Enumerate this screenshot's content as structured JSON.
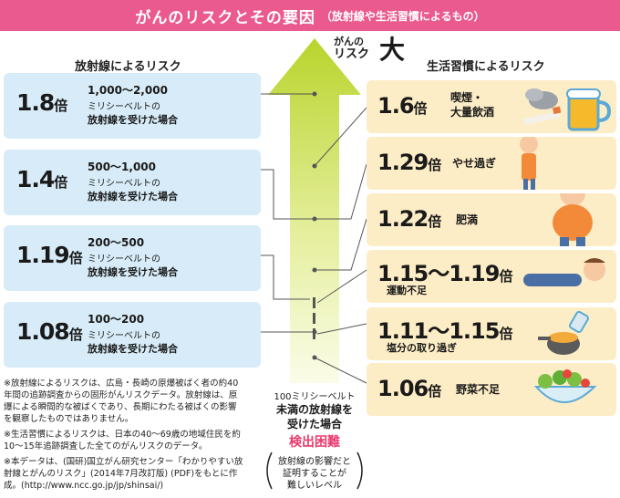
{
  "title": {
    "main": "がんのリスクとその要因",
    "sub": "（放射線や生活習慣によるもの）"
  },
  "risk_label": {
    "line1": "がんの",
    "line2": "リスク",
    "big": "大"
  },
  "left_header": "放射線によるリスク",
  "right_header": "生活習慣によるリスク",
  "radiation": [
    {
      "value": "1.8",
      "unit": "倍",
      "dose": "1,000〜2,000",
      "unit_label": "ミリシーベルトの",
      "desc": "放射線を受けた場合",
      "icon": "radiation-icon"
    },
    {
      "value": "1.4",
      "unit": "倍",
      "dose": "500〜1,000",
      "unit_label": "ミリシーベルトの",
      "desc": "放射線を受けた場合",
      "icon": "radiation-icon"
    },
    {
      "value": "1.19",
      "unit": "倍",
      "dose": "200〜500",
      "unit_label": "ミリシーベルトの",
      "desc": "放射線を受けた場合",
      "icon": "radiation-icon"
    },
    {
      "value": "1.08",
      "unit": "倍",
      "dose": "100〜200",
      "unit_label": "ミリシーベルトの",
      "desc": "放射線を受けた場合",
      "icon": "radiation-icon"
    }
  ],
  "lifestyle": [
    {
      "value": "1.6",
      "unit": "倍",
      "label1": "喫煙・",
      "label2": "大量飲酒",
      "icon": "cigarette-beer-icon"
    },
    {
      "value": "1.29",
      "unit": "倍",
      "label1": "やせ過ぎ",
      "label2": "",
      "icon": "thin-person-icon"
    },
    {
      "value": "1.22",
      "unit": "倍",
      "label1": "肥満",
      "label2": "",
      "icon": "obese-person-icon"
    },
    {
      "value": "1.15〜1.19",
      "unit": "倍",
      "label1": "運動不足",
      "label2": "",
      "icon": "lying-person-icon"
    },
    {
      "value": "1.11〜1.15",
      "unit": "倍",
      "label1": "塩分の取り過ぎ",
      "label2": "",
      "icon": "salt-pot-icon"
    },
    {
      "value": "1.06",
      "unit": "倍",
      "label1": "野菜不足",
      "label2": "",
      "icon": "salad-icon"
    }
  ],
  "center_note": {
    "line1": "100ミリシーベルト",
    "line2": "未満の放射線を",
    "line3": "受けた場合",
    "detect": "検出困難",
    "b1": "放射線の影響だと",
    "b2": "証明することが",
    "b3": "難しいレベル"
  },
  "notes": [
    "※放射線によるリスクは、広島・長崎の原爆被ばく者の約40年間の追跡調査からの固形がんリスクデータ。放射線は、原爆による瞬間的な被ばくであり、長期にわたる被ばくの影響を観察したものではありません。",
    "※生活習慣によるリスクは、日本の40〜69歳の地域住民を約10〜15年追跡調査した全てのがんリスクのデータ。",
    "※本データは、(国研)国立がん研究センター「わかりやすい放射線とがんのリスク」(2014年7月改訂版) (PDF)をもとに作成。(http://www.ncc.go.jp/jp/shinsai/)"
  ],
  "colors": {
    "title_bg": "#ea5a8e",
    "radiation_box": "#d7ecf8",
    "lifestyle_box": "#fdedc6",
    "arrow": "#c8dc3c",
    "detect": "#e83a6e",
    "radiation_icon": "#6cc0e8"
  }
}
